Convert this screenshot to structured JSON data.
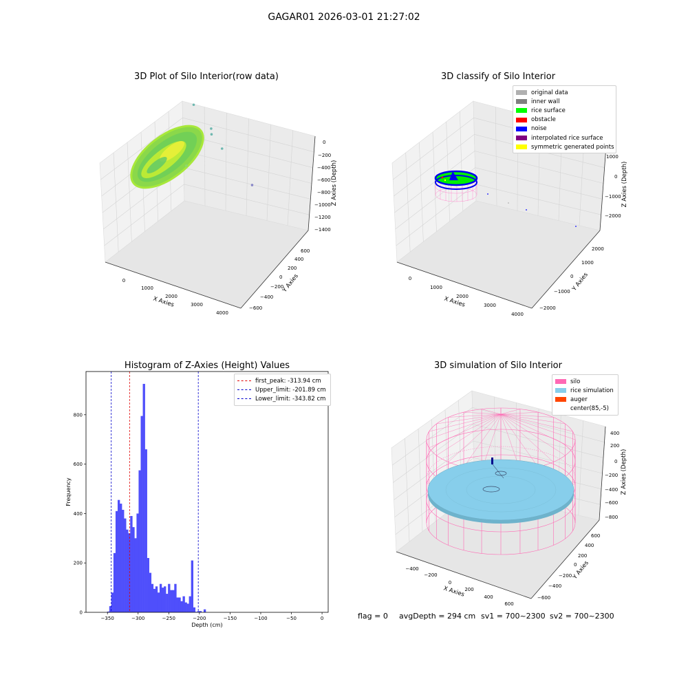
{
  "figure": {
    "suptitle": "GAGAR01 2026-03-01 21:27:02",
    "status": {
      "flag": "flag = 0",
      "avg_depth": "avgDepth = 294 cm",
      "sv1": "sv1 = 700~2300",
      "sv2": "sv2 = 700~2300"
    }
  },
  "colors": {
    "hist_bar": "#4f4ffb",
    "first_peak": "#e00000",
    "limit_lines": "#0000cc",
    "silo_pink": "#ff69b4",
    "rice_blue": "#87ceeb",
    "auger_orange": "#ff4500"
  },
  "chart_data": [
    {
      "type": "scatter",
      "title": "3D Plot of Silo Interior(row data)",
      "xlabel": "X Axies",
      "ylabel": "Y Axies",
      "zlabel": "Z Axies (Depth)",
      "x_ticks": [
        "0",
        "1000",
        "2000",
        "3000",
        "4000"
      ],
      "y_ticks": [
        "−600",
        "−400",
        "−200",
        "0",
        "200",
        "400",
        "600"
      ],
      "z_ticks": [
        "0",
        "−200",
        "−400",
        "−600",
        "−800",
        "−1000",
        "−1200",
        "−1400"
      ],
      "outliers": [
        {
          "x": 1000,
          "y": 100,
          "z": -650
        },
        {
          "x": 1800,
          "y": 50,
          "z": -900
        },
        {
          "x": 1900,
          "y": 0,
          "z": -950
        },
        {
          "x": 2500,
          "y": -100,
          "z": -1050
        },
        {
          "x": 3900,
          "y": -200,
          "z": -1400
        }
      ]
    },
    {
      "type": "scatter",
      "title": "3D classify of Silo Interior",
      "xlabel": "X Axies",
      "ylabel": "Y Axies",
      "zlabel": "Z Axies (Depth)",
      "x_ticks": [
        "0",
        "1000",
        "2000",
        "3000",
        "4000"
      ],
      "y_ticks": [
        "−2000",
        "−1000",
        "0",
        "1000",
        "2000"
      ],
      "z_ticks": [
        "1000",
        "0",
        "−1000",
        "−2000"
      ],
      "legend": [
        {
          "label": "original data",
          "color": "#b0b0b0"
        },
        {
          "label": "inner wall",
          "color": "#808080"
        },
        {
          "label": "rice surface",
          "color": "#00ff00"
        },
        {
          "label": "obstacle",
          "color": "#ff0000"
        },
        {
          "label": "noise",
          "color": "#0000ff"
        },
        {
          "label": "interpolated rice surface",
          "color": "#800080"
        },
        {
          "label": "symmetric generated points",
          "color": "#ffff00"
        }
      ]
    },
    {
      "type": "bar",
      "title": "Histogram of Z-Axies (Height) Values",
      "xlabel": "Depth (cm)",
      "ylabel": "Frequency",
      "xlim": [
        -385,
        10
      ],
      "ylim": [
        0,
        975
      ],
      "x_ticks": [
        -350,
        -300,
        -250,
        -200,
        -150,
        -100,
        -50,
        0
      ],
      "x_tick_labels": [
        "−350",
        "−300",
        "−250",
        "−200",
        "−150",
        "−100",
        "−50",
        "0"
      ],
      "y_ticks": [
        0,
        200,
        400,
        600,
        800
      ],
      "y_tick_labels": [
        "0",
        "200",
        "400",
        "600",
        "800"
      ],
      "bin_start": -350.5,
      "bin_width": 3.42,
      "values": [
        3,
        25,
        80,
        240,
        410,
        455,
        440,
        415,
        380,
        335,
        320,
        390,
        345,
        300,
        400,
        575,
        795,
        925,
        660,
        220,
        160,
        115,
        95,
        105,
        80,
        115,
        100,
        105,
        75,
        115,
        90,
        90,
        115,
        60,
        60,
        45,
        65,
        40,
        35,
        65,
        210,
        20,
        2,
        5,
        5,
        0,
        12
      ],
      "lines": [
        {
          "name": "first_peak: -313.94 cm",
          "x": -313.94,
          "color": "#e00000"
        },
        {
          "name": "Upper_limit: -201.89 cm",
          "x": -201.89,
          "color": "#0000cc"
        },
        {
          "name": "Lower_limit: -343.82 cm",
          "x": -343.82,
          "color": "#0000cc"
        }
      ]
    },
    {
      "type": "scatter",
      "title": "3D simulation of Silo Interior",
      "xlabel": "X Axies",
      "ylabel": "Y Axies",
      "zlabel": "Z Axies (Depth)",
      "x_ticks": [
        "−400",
        "−200",
        "0",
        "200",
        "400",
        "600"
      ],
      "y_ticks": [
        "−600",
        "−400",
        "−200",
        "0",
        "200",
        "400",
        "600"
      ],
      "z_ticks": [
        "400",
        "200",
        "0",
        "−200",
        "−400",
        "−600",
        "−800"
      ],
      "legend": [
        {
          "label": "silo",
          "color": "#ff69b4"
        },
        {
          "label": "rice simulation",
          "color": "#87ceeb"
        },
        {
          "label": "auger",
          "color": "#ff4500"
        },
        {
          "label": "center(85,-5)",
          "color": "#ffffff"
        }
      ]
    }
  ]
}
